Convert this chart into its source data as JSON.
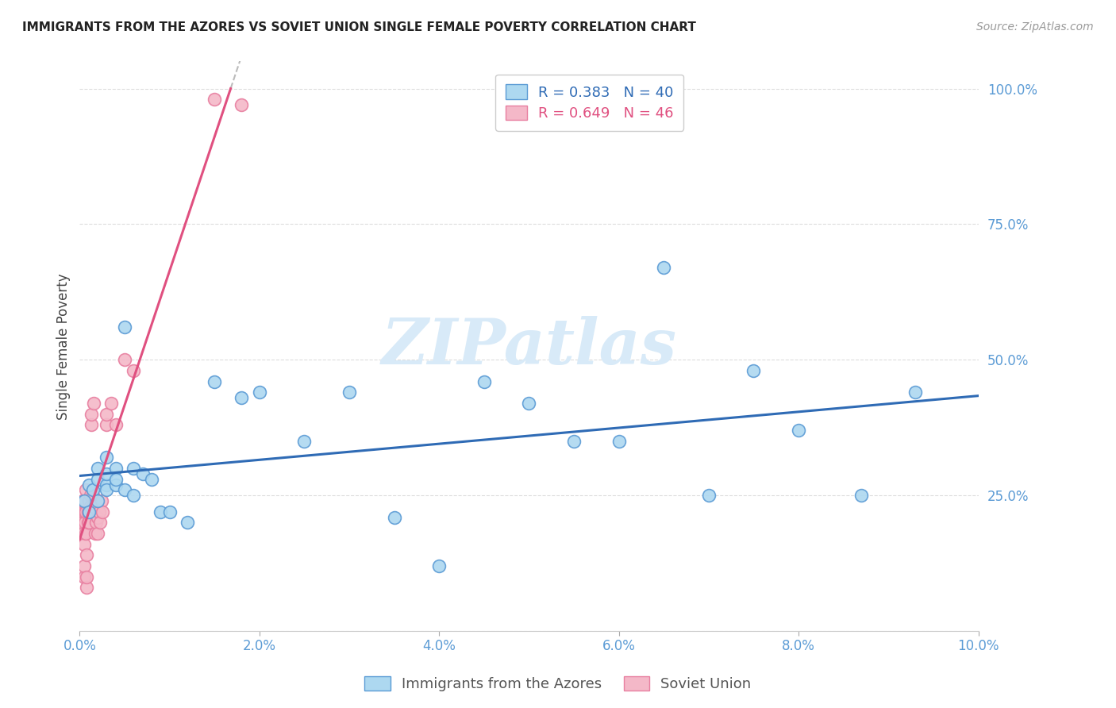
{
  "title": "IMMIGRANTS FROM THE AZORES VS SOVIET UNION SINGLE FEMALE POVERTY CORRELATION CHART",
  "source": "Source: ZipAtlas.com",
  "ylabel": "Single Female Poverty",
  "y_ticks": [
    0.0,
    0.25,
    0.5,
    0.75,
    1.0
  ],
  "y_tick_labels": [
    "",
    "25.0%",
    "50.0%",
    "75.0%",
    "100.0%"
  ],
  "x_ticks": [
    0.0,
    0.02,
    0.04,
    0.06,
    0.08,
    0.1
  ],
  "x_tick_labels": [
    "0.0%",
    "2.0%",
    "4.0%",
    "6.0%",
    "8.0%",
    "10.0%"
  ],
  "xlim": [
    0.0,
    0.1
  ],
  "ylim": [
    0.0,
    1.05
  ],
  "azores_R": 0.383,
  "azores_N": 40,
  "soviet_R": 0.649,
  "soviet_N": 46,
  "azores_color": "#ADD8F0",
  "azores_edge_color": "#5B9BD5",
  "azores_line_color": "#2F6BB5",
  "soviet_color": "#F4B8C8",
  "soviet_edge_color": "#E87FA0",
  "soviet_line_color": "#E05080",
  "grid_color": "#DDDDDD",
  "watermark_color": "#D8EAF8",
  "background_color": "#FFFFFF",
  "title_color": "#222222",
  "source_color": "#999999",
  "tick_color": "#5B9BD5",
  "ylabel_color": "#444444",
  "legend_text_color_azores": "#2F6BB5",
  "legend_text_color_soviet": "#E05080",
  "azores_x": [
    0.0005,
    0.001,
    0.001,
    0.0015,
    0.002,
    0.002,
    0.002,
    0.003,
    0.003,
    0.003,
    0.003,
    0.004,
    0.004,
    0.004,
    0.005,
    0.005,
    0.006,
    0.006,
    0.007,
    0.008,
    0.009,
    0.01,
    0.012,
    0.015,
    0.018,
    0.02,
    0.025,
    0.03,
    0.035,
    0.04,
    0.045,
    0.05,
    0.055,
    0.06,
    0.065,
    0.07,
    0.075,
    0.08,
    0.087,
    0.093
  ],
  "azores_y": [
    0.24,
    0.22,
    0.27,
    0.26,
    0.24,
    0.28,
    0.3,
    0.27,
    0.29,
    0.32,
    0.26,
    0.27,
    0.3,
    0.28,
    0.26,
    0.56,
    0.25,
    0.3,
    0.29,
    0.28,
    0.22,
    0.22,
    0.2,
    0.46,
    0.43,
    0.44,
    0.35,
    0.44,
    0.21,
    0.12,
    0.46,
    0.42,
    0.35,
    0.35,
    0.67,
    0.25,
    0.48,
    0.37,
    0.25,
    0.44
  ],
  "soviet_x": [
    0.0002,
    0.0003,
    0.0003,
    0.0004,
    0.0004,
    0.0005,
    0.0005,
    0.0005,
    0.0006,
    0.0006,
    0.0006,
    0.0007,
    0.0007,
    0.0007,
    0.0008,
    0.0008,
    0.0008,
    0.0009,
    0.0009,
    0.001,
    0.001,
    0.001,
    0.0012,
    0.0012,
    0.0013,
    0.0013,
    0.0014,
    0.0015,
    0.0015,
    0.0016,
    0.0017,
    0.0018,
    0.002,
    0.002,
    0.0022,
    0.0023,
    0.0024,
    0.0025,
    0.003,
    0.003,
    0.0035,
    0.004,
    0.005,
    0.006,
    0.015,
    0.018
  ],
  "soviet_y": [
    0.22,
    0.2,
    0.24,
    0.18,
    0.22,
    0.1,
    0.12,
    0.16,
    0.22,
    0.2,
    0.24,
    0.18,
    0.22,
    0.26,
    0.08,
    0.1,
    0.14,
    0.2,
    0.22,
    0.22,
    0.24,
    0.2,
    0.25,
    0.23,
    0.38,
    0.4,
    0.22,
    0.25,
    0.23,
    0.42,
    0.18,
    0.2,
    0.21,
    0.18,
    0.22,
    0.2,
    0.24,
    0.22,
    0.38,
    0.4,
    0.42,
    0.38,
    0.5,
    0.48,
    0.98,
    0.97
  ]
}
